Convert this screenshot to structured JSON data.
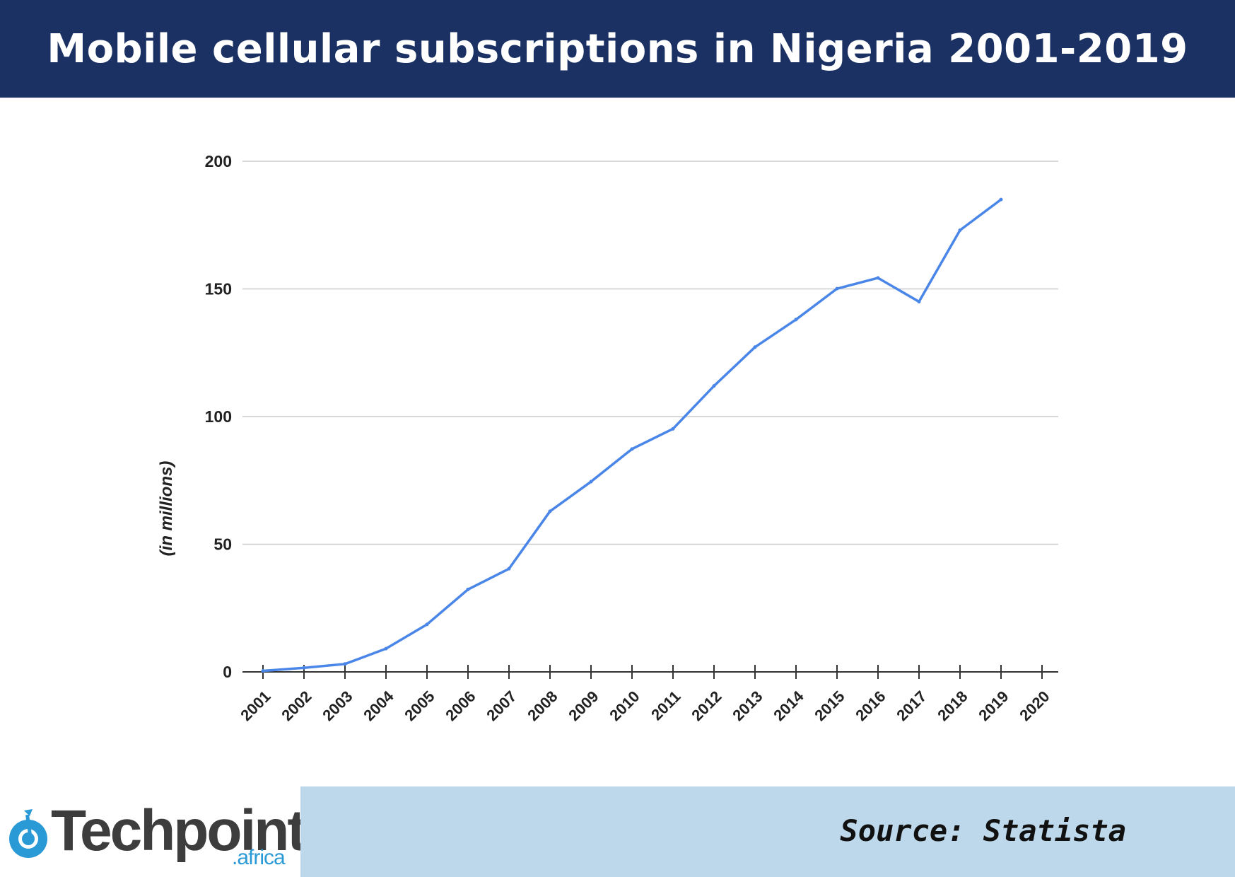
{
  "header": {
    "title": "Mobile cellular subscriptions in Nigeria 2001-2019"
  },
  "chart_data": {
    "type": "line",
    "title": "Mobile cellular subscriptions in Nigeria 2001-2019",
    "xlabel": "",
    "ylabel": "(in millions)",
    "x": [
      "2001",
      "2002",
      "2003",
      "2004",
      "2005",
      "2006",
      "2007",
      "2008",
      "2009",
      "2010",
      "2011",
      "2012",
      "2013",
      "2014",
      "2015",
      "2016",
      "2017",
      "2018",
      "2019",
      "2020"
    ],
    "series": [
      {
        "values": [
          0.4,
          1.6,
          3.1,
          9.1,
          18.6,
          32.3,
          40.4,
          62.9,
          74.5,
          87.3,
          95.2,
          112.0,
          127.2,
          138.0,
          150.1,
          154.3,
          145.0,
          173.0,
          185.0,
          null
        ],
        "color": "#4a86e8"
      }
    ],
    "ylim": [
      0,
      200
    ],
    "yticks": [
      0,
      50,
      100,
      150,
      200
    ],
    "grid": true,
    "legend": "none"
  },
  "footer": {
    "source": "Source: Statista",
    "logo_text": "Techpoint",
    "logo_sub": ".africa"
  },
  "colors": {
    "header_bg": "#1c3163",
    "footer_bg": "#bcd8ea",
    "line": "#4a86e8",
    "logo_blue": "#2a9ad6"
  }
}
